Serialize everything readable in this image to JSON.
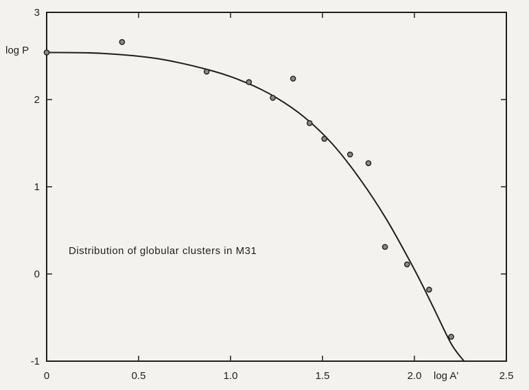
{
  "chart_data": {
    "type": "scatter",
    "title": "",
    "xlabel": "log A'",
    "ylabel": "log P",
    "xlim": [
      0,
      2.5
    ],
    "ylim": [
      -1,
      3
    ],
    "grid": false,
    "x_ticks": [
      0,
      0.5,
      1.0,
      1.5,
      2.0,
      2.5
    ],
    "x_tick_labels": [
      "0",
      "0.5",
      "1.0",
      "1.5",
      "2.0",
      "2.5"
    ],
    "y_ticks": [
      -1,
      0,
      1,
      2,
      3
    ],
    "y_tick_labels": [
      "-1",
      "0",
      "1",
      "2",
      "3"
    ],
    "annotation": "Distribution of globular clusters in M31",
    "series": [
      {
        "kind": "points",
        "x": [
          0.0,
          0.41,
          0.87,
          1.1,
          1.23,
          1.34,
          1.43,
          1.51,
          1.65,
          1.75,
          1.84,
          1.96,
          2.08,
          2.2
        ],
        "y": [
          2.54,
          2.66,
          2.32,
          2.2,
          2.02,
          2.24,
          1.73,
          1.55,
          1.37,
          1.27,
          0.31,
          0.11,
          -0.18,
          -0.72
        ]
      },
      {
        "kind": "curve",
        "x": [
          0.0,
          0.3,
          0.6,
          0.9,
          1.1,
          1.25,
          1.4,
          1.55,
          1.7,
          1.85,
          2.0,
          2.1,
          2.2,
          2.27
        ],
        "y": [
          2.54,
          2.53,
          2.47,
          2.33,
          2.18,
          2.02,
          1.8,
          1.5,
          1.1,
          0.62,
          0.05,
          -0.37,
          -0.8,
          -1.0
        ]
      }
    ]
  }
}
